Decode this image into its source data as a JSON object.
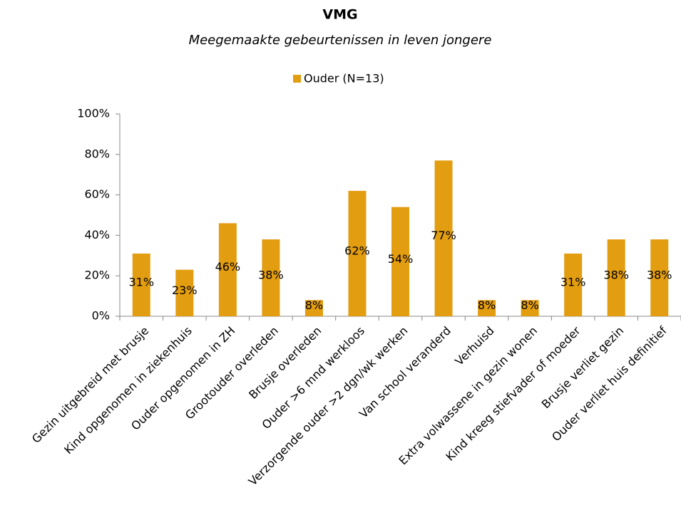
{
  "chart_data": {
    "type": "bar",
    "title": "VMG",
    "subtitle": "Meegemaakte gebeurtenissen in leven jongere",
    "categories": [
      "Gezin uitgebreid met brusje",
      "Kind opgenomen in ziekenhuis",
      "Ouder opgenomen in ZH",
      "Grootouder overleden",
      "Brusje overleden",
      "Ouder >6 mnd werkloos",
      "Verzorgende ouder >2 dgn/wk werken",
      "Van school veranderd",
      "Verhuisd",
      "Extra volwassene in gezin wonen",
      "Kind kreeg stiefvader of moeder",
      "Brusje verliet gezin",
      "Ouder verliet huis definitief"
    ],
    "series": [
      {
        "name": "Ouder (N=13)",
        "color": "#e39d11",
        "values": [
          31,
          23,
          46,
          38,
          8,
          62,
          54,
          77,
          8,
          8,
          31,
          38,
          38
        ],
        "value_labels": [
          "31%",
          "23%",
          "46%",
          "38%",
          "8%",
          "62%",
          "54%",
          "77%",
          "8%",
          "8%",
          "31%",
          "38%",
          "38%"
        ]
      }
    ],
    "ylim": [
      0,
      100
    ],
    "yticks": [
      {
        "value": 0,
        "label": "0%"
      },
      {
        "value": 20,
        "label": "20%"
      },
      {
        "value": 40,
        "label": "40%"
      },
      {
        "value": 60,
        "label": "60%"
      },
      {
        "value": 80,
        "label": "80%"
      },
      {
        "value": 100,
        "label": "100%"
      }
    ],
    "grid": false,
    "legend": "top"
  }
}
